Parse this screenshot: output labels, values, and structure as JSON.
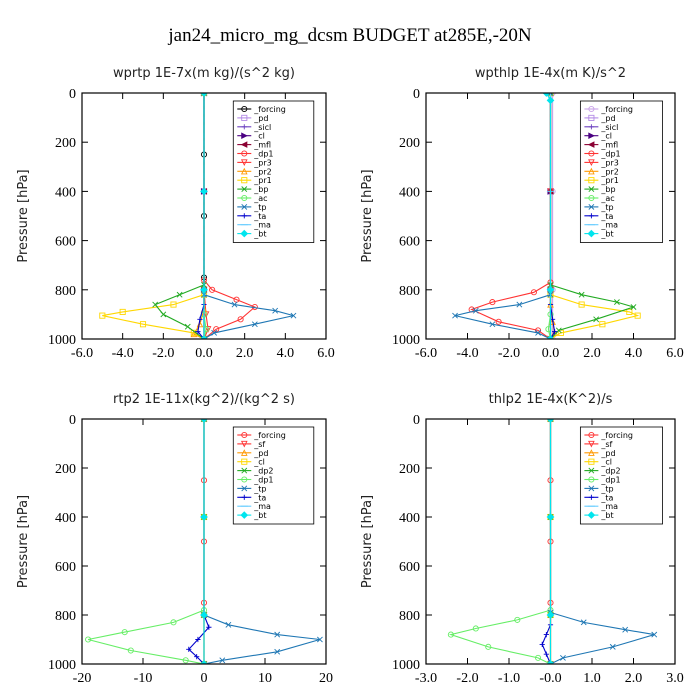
{
  "figure": {
    "title": "jan24_micro_mg_dcsm  BUDGET at285E,-20N"
  },
  "chart_data": [
    {
      "type": "line",
      "title": "wprtp  1E-7x(m kg)/(s^2 kg)",
      "ylabel": "Pressure [hPa]",
      "xlim": [
        -6,
        6
      ],
      "ylim": [
        1000,
        0
      ],
      "xticks": [
        "-6.0",
        "-4.0",
        "-2.0",
        "0.0",
        "2.0",
        "4.0",
        "6.0"
      ],
      "xtick_values": [
        -6,
        -4,
        -2,
        0,
        2,
        4,
        6
      ],
      "yticks": [
        "0",
        "200",
        "400",
        "600",
        "800",
        "1000"
      ],
      "ytick_values": [
        0,
        200,
        400,
        600,
        800,
        1000
      ],
      "legend_position": "top-right",
      "series": [
        {
          "name": "_forcing",
          "color": "#000000",
          "marker": "o",
          "x": [
            0,
            0,
            0,
            0,
            0
          ],
          "y": [
            0,
            250,
            500,
            750,
            1000
          ]
        },
        {
          "name": "_pd",
          "color": "#b48ce6",
          "marker": "s",
          "x": [
            0,
            0,
            0,
            0
          ],
          "y": [
            0,
            400,
            800,
            1000
          ]
        },
        {
          "name": "_sicl",
          "color": "#6a3fbf",
          "marker": "+",
          "x": [
            0,
            0,
            0,
            0
          ],
          "y": [
            0,
            400,
            800,
            1000
          ]
        },
        {
          "name": "_cl",
          "color": "#4b0082",
          "marker": ">",
          "x": [
            0,
            0,
            0,
            0
          ],
          "y": [
            0,
            400,
            800,
            1000
          ]
        },
        {
          "name": "_mfl",
          "color": "#8b0033",
          "marker": "<",
          "x": [
            0,
            0,
            0,
            0
          ],
          "y": [
            0,
            400,
            800,
            1000
          ]
        },
        {
          "name": "_dp1",
          "color": "#ff3333",
          "marker": "o",
          "x": [
            0,
            0,
            0.4,
            1.6,
            2.5,
            1.8,
            0.6,
            0
          ],
          "y": [
            0,
            760,
            800,
            840,
            870,
            920,
            960,
            1000
          ]
        },
        {
          "name": "_pr3",
          "color": "#ff3333",
          "marker": "v",
          "x": [
            0,
            0,
            0.1,
            0.2,
            0
          ],
          "y": [
            0,
            800,
            900,
            960,
            1000
          ]
        },
        {
          "name": "_pr2",
          "color": "#ff9900",
          "marker": "^",
          "x": [
            0,
            0,
            -0.2,
            -0.5,
            0
          ],
          "y": [
            0,
            880,
            940,
            980,
            1000
          ]
        },
        {
          "name": "_pr1",
          "color": "#ffd700",
          "marker": "s",
          "x": [
            0,
            0,
            -1.5,
            -4.0,
            -5.0,
            -3.0,
            -0.5,
            0
          ],
          "y": [
            0,
            820,
            860,
            890,
            905,
            940,
            975,
            1000
          ]
        },
        {
          "name": "_bp",
          "color": "#22aa22",
          "marker": "x",
          "x": [
            0,
            0,
            -1.2,
            -2.4,
            -2.0,
            -0.8,
            0
          ],
          "y": [
            0,
            780,
            820,
            860,
            900,
            950,
            1000
          ]
        },
        {
          "name": "_ac",
          "color": "#66ee66",
          "marker": "o",
          "x": [
            0,
            0,
            0.1,
            0
          ],
          "y": [
            0,
            900,
            960,
            1000
          ]
        },
        {
          "name": "_tp",
          "color": "#1f77b4",
          "marker": "x",
          "x": [
            0,
            0,
            1.5,
            3.5,
            4.4,
            2.5,
            0.5,
            0
          ],
          "y": [
            0,
            820,
            860,
            885,
            905,
            940,
            975,
            1000
          ]
        },
        {
          "name": "_ta",
          "color": "#0000cc",
          "marker": "+",
          "x": [
            0,
            0,
            -0.2,
            -0.3,
            0
          ],
          "y": [
            0,
            860,
            920,
            970,
            1000
          ]
        },
        {
          "name": "_ma",
          "color": "#66ccff",
          "marker": "-",
          "x": [
            0,
            0,
            0,
            0
          ],
          "y": [
            0,
            400,
            800,
            1000
          ]
        },
        {
          "name": "_bt",
          "color": "#00e5ee",
          "marker": "D",
          "x": [
            0,
            0,
            0,
            0
          ],
          "y": [
            0,
            400,
            800,
            1000
          ]
        }
      ]
    },
    {
      "type": "line",
      "title": "wpthlp  1E-4x(m K)/s^2",
      "ylabel": "Pressure [hPa]",
      "xlim": [
        -6,
        6
      ],
      "ylim": [
        1000,
        0
      ],
      "xticks": [
        "-6.0",
        "-4.0",
        "-2.0",
        "0.0",
        "2.0",
        "4.0",
        "6.0"
      ],
      "xtick_values": [
        -6,
        -4,
        -2,
        0,
        2,
        4,
        6
      ],
      "yticks": [
        "0",
        "200",
        "400",
        "600",
        "800",
        "1000"
      ],
      "ytick_values": [
        0,
        200,
        400,
        600,
        800,
        1000
      ],
      "legend_position": "top-right",
      "series": [
        {
          "name": "_forcing",
          "color": "#c8a2e8",
          "marker": "o",
          "x": [
            0.1,
            0.1,
            0.1,
            0.1
          ],
          "y": [
            0,
            400,
            800,
            1000
          ]
        },
        {
          "name": "_pd",
          "color": "#b48ce6",
          "marker": "s",
          "x": [
            0,
            0,
            0,
            0
          ],
          "y": [
            0,
            400,
            800,
            1000
          ]
        },
        {
          "name": "_sicl",
          "color": "#6a3fbf",
          "marker": "+",
          "x": [
            0,
            0,
            0,
            0
          ],
          "y": [
            0,
            400,
            800,
            1000
          ]
        },
        {
          "name": "_cl",
          "color": "#4b0082",
          "marker": ">",
          "x": [
            0,
            0,
            0,
            0
          ],
          "y": [
            0,
            400,
            800,
            1000
          ]
        },
        {
          "name": "_mfl",
          "color": "#8b0033",
          "marker": "<",
          "x": [
            0,
            0,
            0,
            0
          ],
          "y": [
            0,
            400,
            800,
            1000
          ]
        },
        {
          "name": "_dp1",
          "color": "#ff3333",
          "marker": "o",
          "x": [
            0,
            0,
            -0.8,
            -2.8,
            -3.8,
            -2.5,
            -0.6,
            0
          ],
          "y": [
            0,
            770,
            810,
            850,
            880,
            930,
            965,
            1000
          ]
        },
        {
          "name": "_pr3",
          "color": "#ff3333",
          "marker": "v",
          "x": [
            0,
            0,
            0,
            0
          ],
          "y": [
            0,
            400,
            800,
            1000
          ]
        },
        {
          "name": "_pr2",
          "color": "#ff9900",
          "marker": "^",
          "x": [
            0,
            0,
            0.1,
            0.2,
            0
          ],
          "y": [
            0,
            860,
            930,
            975,
            1000
          ]
        },
        {
          "name": "_pr1",
          "color": "#ffd700",
          "marker": "s",
          "x": [
            0,
            0,
            1.5,
            3.8,
            4.2,
            2.5,
            0.5,
            0
          ],
          "y": [
            0,
            820,
            860,
            890,
            905,
            940,
            975,
            1000
          ]
        },
        {
          "name": "_bp",
          "color": "#22aa22",
          "marker": "x",
          "x": [
            0,
            0,
            1.5,
            3.2,
            4.0,
            2.2,
            0.4,
            0
          ],
          "y": [
            0,
            780,
            820,
            850,
            870,
            920,
            965,
            1000
          ]
        },
        {
          "name": "_ac",
          "color": "#66ee66",
          "marker": "o",
          "x": [
            0,
            0,
            -0.1,
            0
          ],
          "y": [
            0,
            900,
            960,
            1000
          ]
        },
        {
          "name": "_tp",
          "color": "#1f77b4",
          "marker": "x",
          "x": [
            0,
            0,
            -1.5,
            -3.6,
            -4.6,
            -2.8,
            -0.6,
            0
          ],
          "y": [
            0,
            820,
            860,
            885,
            905,
            940,
            975,
            1000
          ]
        },
        {
          "name": "_ta",
          "color": "#0000cc",
          "marker": "+",
          "x": [
            0,
            0,
            0.1,
            0.2,
            0
          ],
          "y": [
            0,
            860,
            920,
            970,
            1000
          ]
        },
        {
          "name": "_ma",
          "color": "#66ccff",
          "marker": "-",
          "x": [
            0,
            0,
            0,
            0
          ],
          "y": [
            0,
            400,
            800,
            1000
          ]
        },
        {
          "name": "_bt",
          "color": "#00e5ee",
          "marker": "D",
          "x": [
            -0.2,
            0,
            0,
            0
          ],
          "y": [
            0,
            30,
            800,
            1000
          ]
        }
      ]
    },
    {
      "type": "line",
      "title": "rtp2  1E-11x(kg^2)/(kg^2 s)",
      "ylabel": "Pressure [hPa]",
      "xlim": [
        -20,
        20
      ],
      "ylim": [
        1000,
        0
      ],
      "xticks": [
        "-20",
        "-10",
        "0",
        "10",
        "20"
      ],
      "xtick_values": [
        -20,
        -10,
        0,
        10,
        20
      ],
      "yticks": [
        "0",
        "200",
        "400",
        "600",
        "800",
        "1000"
      ],
      "ytick_values": [
        0,
        200,
        400,
        600,
        800,
        1000
      ],
      "legend_position": "top-right",
      "series": [
        {
          "name": "_forcing",
          "color": "#ff3333",
          "marker": "o",
          "x": [
            0,
            0,
            0,
            0,
            0
          ],
          "y": [
            0,
            250,
            500,
            750,
            1000
          ]
        },
        {
          "name": "_sf",
          "color": "#ff3333",
          "marker": "v",
          "x": [
            0,
            0,
            0,
            0
          ],
          "y": [
            0,
            400,
            800,
            1000
          ]
        },
        {
          "name": "_pd",
          "color": "#ff9900",
          "marker": "^",
          "x": [
            0,
            0,
            0,
            0
          ],
          "y": [
            0,
            400,
            800,
            1000
          ]
        },
        {
          "name": "_cl",
          "color": "#ffd700",
          "marker": "s",
          "x": [
            0,
            0,
            0,
            0
          ],
          "y": [
            0,
            400,
            800,
            1000
          ]
        },
        {
          "name": "_dp2",
          "color": "#22aa22",
          "marker": "x",
          "x": [
            0,
            0,
            0,
            0
          ],
          "y": [
            0,
            400,
            800,
            1000
          ]
        },
        {
          "name": "_dp1",
          "color": "#66ee66",
          "marker": "o",
          "x": [
            0,
            0,
            -5,
            -13,
            -19,
            -12,
            -3,
            0
          ],
          "y": [
            0,
            780,
            830,
            870,
            900,
            945,
            985,
            1000
          ]
        },
        {
          "name": "_tp",
          "color": "#1f77b4",
          "marker": "x",
          "x": [
            0,
            0,
            4,
            12,
            19,
            12,
            3,
            0
          ],
          "y": [
            0,
            800,
            840,
            880,
            900,
            950,
            985,
            1000
          ]
        },
        {
          "name": "_ta",
          "color": "#0000cc",
          "marker": "+",
          "x": [
            0,
            0,
            0.8,
            -1.0,
            -2.5,
            -1.2,
            0
          ],
          "y": [
            0,
            800,
            850,
            900,
            940,
            970,
            1000
          ]
        },
        {
          "name": "_ma",
          "color": "#66ccff",
          "marker": "-",
          "x": [
            0,
            0,
            0,
            0
          ],
          "y": [
            0,
            400,
            800,
            1000
          ]
        },
        {
          "name": "_bt",
          "color": "#00e5ee",
          "marker": "D",
          "x": [
            0,
            0,
            0,
            0
          ],
          "y": [
            0,
            400,
            800,
            1000
          ]
        }
      ]
    },
    {
      "type": "line",
      "title": "thlp2  1E-4x(K^2)/s",
      "ylabel": "Pressure [hPa]",
      "xlim": [
        -3,
        3
      ],
      "ylim": [
        1000,
        0
      ],
      "xticks": [
        "-3.0",
        "-2.0",
        "-1.0",
        "-0.0",
        "1.0",
        "2.0",
        "3.0"
      ],
      "xtick_values": [
        -3,
        -2,
        -1,
        0,
        1,
        2,
        3
      ],
      "yticks": [
        "0",
        "200",
        "400",
        "600",
        "800",
        "1000"
      ],
      "ytick_values": [
        0,
        200,
        400,
        600,
        800,
        1000
      ],
      "legend_position": "top-right",
      "series": [
        {
          "name": "_forcing",
          "color": "#ff3333",
          "marker": "o",
          "x": [
            0,
            0,
            0,
            0,
            0
          ],
          "y": [
            0,
            250,
            500,
            750,
            1000
          ]
        },
        {
          "name": "_sf",
          "color": "#ff3333",
          "marker": "v",
          "x": [
            0,
            0,
            0,
            0
          ],
          "y": [
            0,
            400,
            800,
            1000
          ]
        },
        {
          "name": "_pd",
          "color": "#ff9900",
          "marker": "^",
          "x": [
            0,
            0,
            0,
            0
          ],
          "y": [
            0,
            400,
            800,
            1000
          ]
        },
        {
          "name": "_cl",
          "color": "#ffd700",
          "marker": "s",
          "x": [
            0,
            0,
            0,
            0
          ],
          "y": [
            0,
            400,
            800,
            1000
          ]
        },
        {
          "name": "_dp2",
          "color": "#22aa22",
          "marker": "x",
          "x": [
            0,
            0,
            0,
            0
          ],
          "y": [
            0,
            400,
            800,
            1000
          ]
        },
        {
          "name": "_dp1",
          "color": "#66ee66",
          "marker": "o",
          "x": [
            0,
            0,
            -0.8,
            -1.8,
            -2.4,
            -1.5,
            -0.3,
            0
          ],
          "y": [
            0,
            780,
            820,
            855,
            880,
            930,
            975,
            1000
          ]
        },
        {
          "name": "_tp",
          "color": "#1f77b4",
          "marker": "x",
          "x": [
            0,
            0,
            0.8,
            1.8,
            2.5,
            1.5,
            0.3,
            0
          ],
          "y": [
            0,
            790,
            830,
            860,
            880,
            930,
            975,
            1000
          ]
        },
        {
          "name": "_ta",
          "color": "#0000cc",
          "marker": "+",
          "x": [
            0,
            0,
            -0.1,
            -0.2,
            -0.1,
            0
          ],
          "y": [
            0,
            840,
            880,
            920,
            960,
            1000
          ]
        },
        {
          "name": "_ma",
          "color": "#66ccff",
          "marker": "-",
          "x": [
            0,
            0,
            0,
            0
          ],
          "y": [
            0,
            400,
            800,
            1000
          ]
        },
        {
          "name": "_bt",
          "color": "#00e5ee",
          "marker": "D",
          "x": [
            0,
            0,
            0,
            0
          ],
          "y": [
            0,
            400,
            800,
            1000
          ]
        }
      ]
    }
  ]
}
